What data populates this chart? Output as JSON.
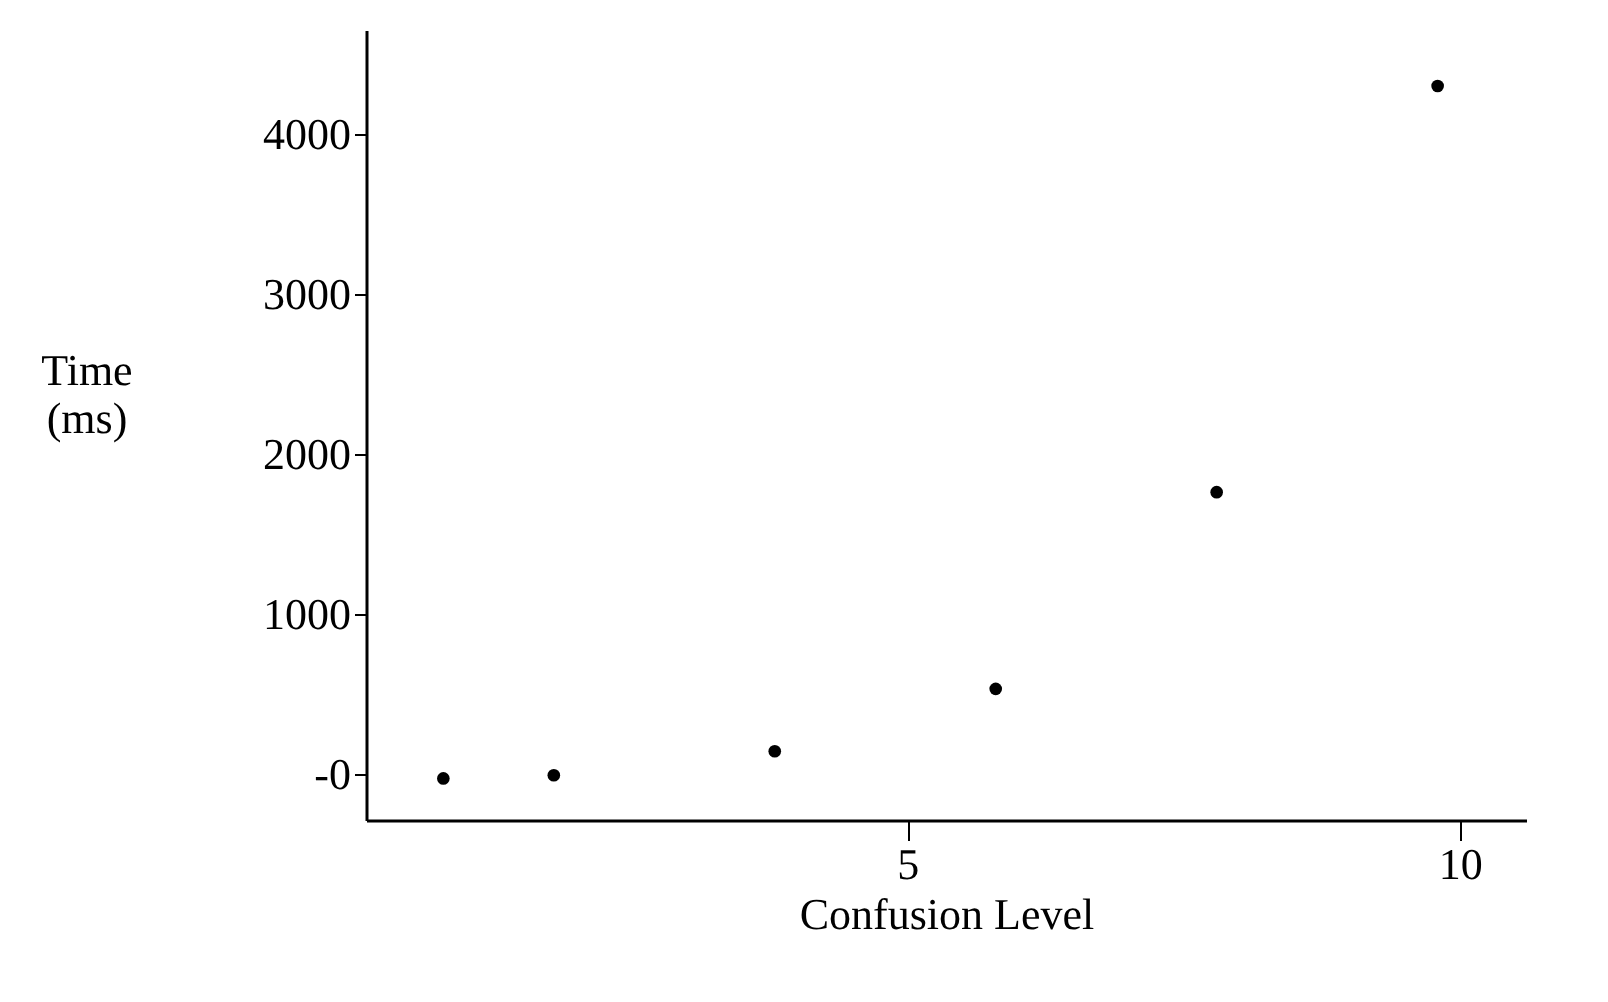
{
  "chart_data": {
    "type": "scatter",
    "xlabel": "Confusion Level",
    "ylabel": "Time\n(ms)",
    "x": [
      0.8,
      1.8,
      3.8,
      5.8,
      7.8,
      9.8
    ],
    "series": [
      {
        "color": "#000000",
        "values": [
          -30,
          -10,
          140,
          530,
          1760,
          4300
        ]
      }
    ],
    "xlim": [
      0.1,
      10.6
    ],
    "ylim": [
      -290,
      4650
    ],
    "xticks": [
      5,
      10
    ],
    "yticks": [
      {
        "value": 0,
        "label": "-0"
      },
      1000,
      2000,
      3000,
      4000
    ],
    "grid": false,
    "marker": "circle"
  }
}
